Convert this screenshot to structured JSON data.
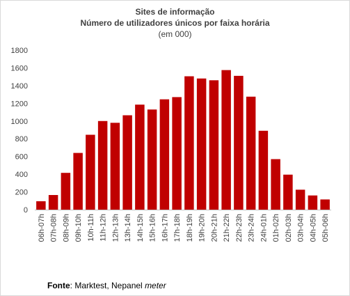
{
  "title": "Sites de informação",
  "subtitle": "Número de utilizadores únicos por faixa horária",
  "unit_note": "(em 000)",
  "source": {
    "label": "Fonte",
    "text": ": Marktest, Nepanel ",
    "italic": "meter"
  },
  "colors": {
    "bar": "#c00000",
    "axis_text": "#404040"
  },
  "chart_data": {
    "type": "bar",
    "title": "Sites de informação",
    "subtitle": "Número de utilizadores únicos por faixa horária",
    "ylabel": "(em 000)",
    "xlabel": "",
    "ylim": [
      0,
      1800
    ],
    "yticks": [
      0,
      200,
      400,
      600,
      800,
      1000,
      1200,
      1400,
      1600,
      1800
    ],
    "grid": false,
    "categories": [
      "06h-07h",
      "07h-08h",
      "08h-09h",
      "09h-10h",
      "10h-11h",
      "11h-12h",
      "12h-13h",
      "13h-14h",
      "14h-15h",
      "15h-16h",
      "16h-17h",
      "17h-18h",
      "18h-19h",
      "19h-20h",
      "20h-21h",
      "21h-22h",
      "22h-23h",
      "23h-24h",
      "24h-01h",
      "01h-02h",
      "02h-03h",
      "03h-04h",
      "04h-05h",
      "05h-06h"
    ],
    "values": [
      95,
      165,
      415,
      640,
      845,
      1000,
      980,
      1065,
      1185,
      1130,
      1245,
      1270,
      1505,
      1480,
      1460,
      1575,
      1510,
      1275,
      890,
      570,
      395,
      225,
      160,
      115
    ]
  }
}
